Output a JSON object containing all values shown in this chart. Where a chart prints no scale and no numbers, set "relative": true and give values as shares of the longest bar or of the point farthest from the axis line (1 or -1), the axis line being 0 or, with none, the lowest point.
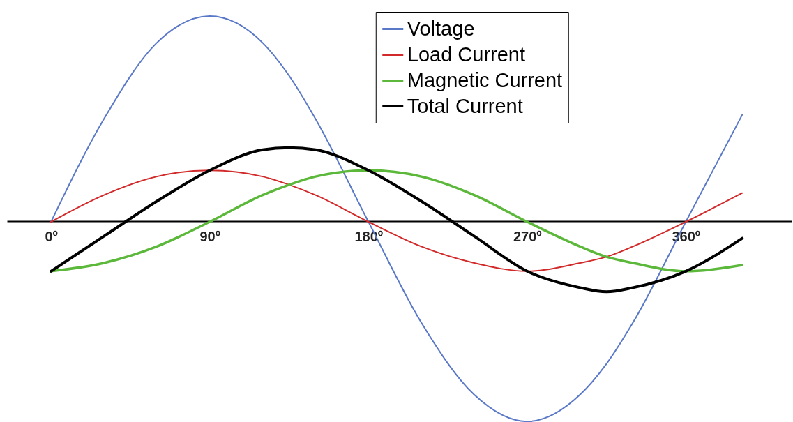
{
  "chart_data": {
    "type": "line",
    "relative": true,
    "x": [
      0,
      30,
      60,
      90,
      120,
      135,
      150,
      180,
      210,
      240,
      270,
      300,
      315,
      330,
      360,
      392
    ],
    "xlim": [
      -25,
      420
    ],
    "xticks": [
      {
        "value": 0,
        "label": "0º"
      },
      {
        "value": 90,
        "label": "90º"
      },
      {
        "value": 180,
        "label": "180º"
      },
      {
        "value": 270,
        "label": "270º"
      },
      {
        "value": 360,
        "label": "360º"
      }
    ],
    "series": [
      {
        "name": "Voltage",
        "color": "#5a78c8",
        "values": [
          0,
          0.5,
          0.87,
          1,
          0.87,
          0.71,
          0.5,
          0,
          -0.49,
          -0.84,
          -0.97,
          -0.84,
          -0.69,
          -0.49,
          0,
          0.52
        ]
      },
      {
        "name": "Load Current",
        "color": "#d22a2a",
        "values": [
          0,
          0.13,
          0.22,
          0.25,
          0.22,
          0.18,
          0.13,
          0,
          -0.12,
          -0.2,
          -0.24,
          -0.2,
          -0.17,
          -0.12,
          0,
          0.14
        ]
      },
      {
        "name": "Magnetic Current",
        "color": "#5cb83a",
        "values": [
          -0.24,
          -0.2,
          -0.12,
          0,
          0.13,
          0.18,
          0.22,
          0.25,
          0.22,
          0.13,
          0,
          -0.12,
          -0.17,
          -0.2,
          -0.24,
          -0.21
        ]
      },
      {
        "name": "Total Current",
        "color": "#000000",
        "values": [
          -0.24,
          -0.07,
          0.1,
          0.25,
          0.35,
          0.36,
          0.35,
          0.25,
          0.1,
          -0.07,
          -0.24,
          -0.32,
          -0.34,
          -0.32,
          -0.24,
          -0.08
        ]
      }
    ],
    "legend": "top right",
    "grid": false,
    "marker": "none",
    "line_style": "solid"
  }
}
